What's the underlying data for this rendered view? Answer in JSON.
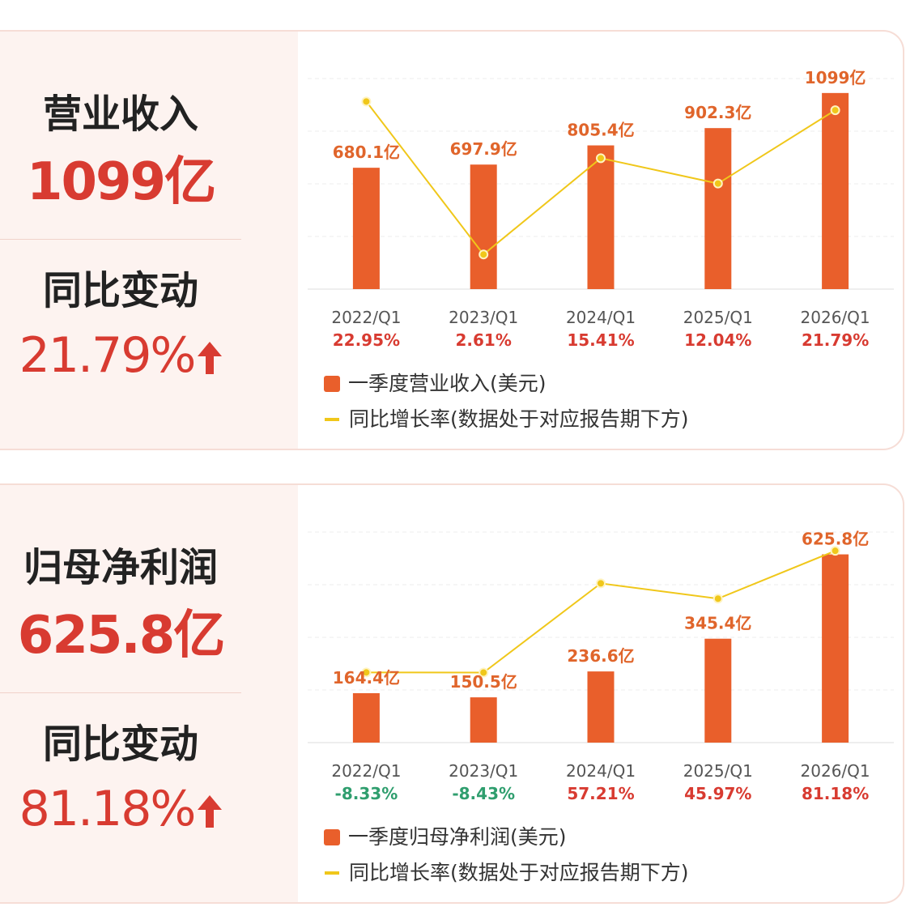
{
  "panels": [
    {
      "metric_label": "营业收入",
      "metric_value": "1099亿",
      "change_label": "同比变动",
      "change_value": "21.79%",
      "change_direction": "up",
      "legend_bar": "一季度营业收入(美元)",
      "legend_line": "同比增长率(数据处于对应报告期下方)"
    },
    {
      "metric_label": "归母净利润",
      "metric_value": "625.8亿",
      "change_label": "同比变动",
      "change_value": "81.18%",
      "change_direction": "up",
      "legend_bar": "一季度归母净利润(美元)",
      "legend_line": "同比增长率(数据处于对应报告期下方)"
    }
  ],
  "colors": {
    "bar": "#e95f2b",
    "line": "#f0c71a",
    "bar_label": "#e0652b",
    "growth_positive": "#d83b31",
    "growth_negative": "#2f9e6e",
    "headline_value": "#d83b31"
  },
  "chart_data": [
    {
      "type": "bar",
      "categories": [
        "2022/Q1",
        "2023/Q1",
        "2024/Q1",
        "2025/Q1",
        "2026/Q1"
      ],
      "series": [
        {
          "values": [
            680.1,
            697.9,
            805.4,
            902.3,
            1099
          ],
          "labels": [
            "680.1亿",
            "697.9亿",
            "805.4亿",
            "902.3亿",
            "1099亿"
          ]
        },
        {
          "type": "line",
          "values": [
            22.95,
            2.61,
            15.41,
            12.04,
            21.79
          ],
          "labels": [
            "22.95%",
            "2.61%",
            "15.41%",
            "12.04%",
            "21.79%"
          ]
        }
      ],
      "ylim": [
        0,
        1180
      ],
      "line_ylim": [
        -2,
        26
      ],
      "grid": true,
      "legend_position": "bottom-left"
    },
    {
      "type": "bar",
      "categories": [
        "2022/Q1",
        "2023/Q1",
        "2024/Q1",
        "2025/Q1",
        "2026/Q1"
      ],
      "series": [
        {
          "values": [
            164.4,
            150.5,
            236.6,
            345.4,
            625.8
          ],
          "labels": [
            "164.4亿",
            "150.5亿",
            "236.6亿",
            "345.4亿",
            "625.8亿"
          ]
        },
        {
          "type": "line",
          "values": [
            -8.33,
            -8.43,
            57.21,
            45.97,
            81.18
          ],
          "labels": [
            "-8.33%",
            "-8.43%",
            "57.21%",
            "45.97%",
            "81.18%"
          ]
        }
      ],
      "ylim": [
        0,
        700
      ],
      "line_ylim": [
        -60,
        95
      ],
      "grid": true,
      "legend_position": "bottom-left"
    }
  ]
}
